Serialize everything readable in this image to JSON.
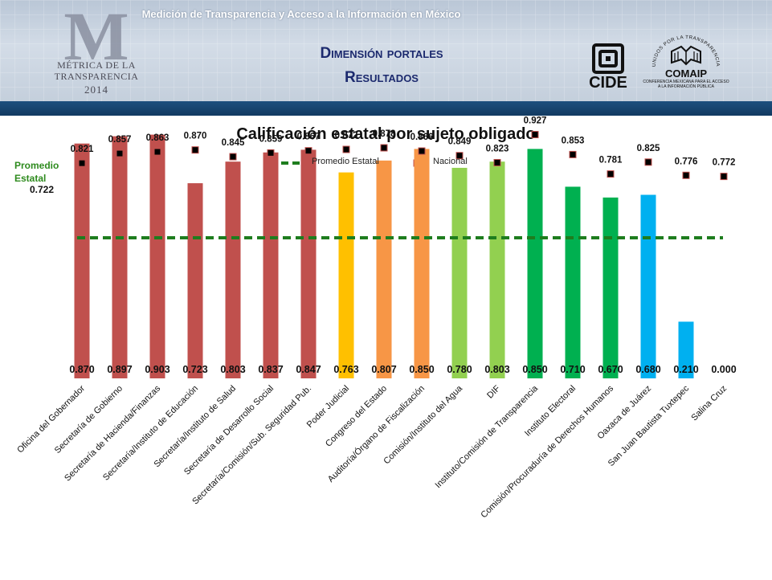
{
  "header": {
    "top_text": "Medición de Transparencia y Acceso a la Información en México",
    "title_line1": "Dimensión portales",
    "title_line2": "Resultados",
    "logo_letter": "M",
    "logo_line1": "MÉTRICA DE LA",
    "logo_line2": "TRANSPARENCIA",
    "logo_year": "2014",
    "cide_label": "CIDE",
    "comaip_arc": "UNIDOS POR LA TRANSPARENCIA",
    "comaip_label": "COMAIP",
    "comaip_sub": "CONFERENCIA MEXICANA PARA EL ACCESO A LA INFORMACIÓN PÚBLICA"
  },
  "chart_data": {
    "type": "bar",
    "title": "Calificación estatal por sujeto obligado",
    "legend": {
      "promedio": "Promedio Estatal",
      "nacional": "Nacional",
      "placement": "top-center"
    },
    "promedio_label": "Promedio Estatal",
    "promedio_value": "0.722",
    "promedio": 0.722,
    "ylim": [
      0,
      1
    ],
    "grid": false,
    "categories": [
      "Oficina del Gobernador",
      "Secretaría de Gobierno",
      "Secretaría de Hacienda/Finanzas",
      "Secretaría/Instituto de Educación",
      "Secretaría/Instituto de Salud",
      "Secretaría de Desarrollo Social",
      "Secretaría/Comisión/Sub. Seguridad Pub.",
      "Poder Judicial",
      "Congreso del Estado",
      "Auditoría/Órgano de Fiscalización",
      "Comisión/Instituto del Agua",
      "DIF",
      "Instituto/Comisión de Transparencia",
      "Instituto Electoral",
      "Comisión/Procuraduría de Derechos Humanos",
      "Oaxaca de Juárez",
      "San Juan Bautista Tuxtepec",
      "Salina Cruz"
    ],
    "values": [
      0.87,
      0.897,
      0.903,
      0.723,
      0.803,
      0.837,
      0.847,
      0.763,
      0.807,
      0.85,
      0.78,
      0.803,
      0.85,
      0.71,
      0.67,
      0.68,
      0.21,
      0.0
    ],
    "value_labels": [
      "0.870",
      "0.897",
      "0.903",
      "0.723",
      "0.803",
      "0.837",
      "0.847",
      "0.763",
      "0.807",
      "0.850",
      "0.780",
      "0.803",
      "0.850",
      "0.710",
      "0.670",
      "0.680",
      "0.210",
      "0.000"
    ],
    "nacional": [
      0.821,
      0.857,
      0.863,
      0.87,
      0.845,
      0.859,
      0.867,
      0.872,
      0.878,
      0.866,
      0.849,
      0.823,
      0.927,
      0.853,
      0.781,
      0.825,
      0.776,
      0.772
    ],
    "nacional_labels": [
      "0.821",
      "0.857",
      "0.863",
      "0.870",
      "0.845",
      "0.859",
      "0.867",
      "0.872",
      "0.878",
      "0.866",
      "0.849",
      "0.823",
      "0.927",
      "0.853",
      "0.781",
      "0.825",
      "0.776",
      "0.772"
    ],
    "colors": [
      "#c0504d",
      "#c0504d",
      "#c0504d",
      "#c0504d",
      "#c0504d",
      "#c0504d",
      "#c0504d",
      "#ffc000",
      "#f79646",
      "#f79646",
      "#92d050",
      "#92d050",
      "#00b050",
      "#00b050",
      "#00b050",
      "#00b0f0",
      "#00b0f0",
      "#00b0f0"
    ],
    "promedio_color": "#1e7d1e",
    "nacional_marker_color": "#000000",
    "nacional_marker_border": "#c0504d"
  }
}
